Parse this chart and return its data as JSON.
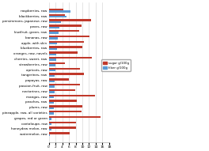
{
  "categories": [
    "raspberries, raw",
    "blackberries, raw",
    "persimmons, japanese, raw",
    "pears, raw",
    "kiwifruit, green, raw",
    "bananas, raw",
    "apple, with skin",
    "blueberries, raw",
    "oranges, raw, navels",
    "cherries, sweet, raw",
    "strawberries, raw",
    "apricots, raw",
    "tangerines, raw",
    "papayas, raw",
    "passion-fruit, raw",
    "nectarines, raw",
    "mangos, raw",
    "peaches, raw",
    "plums, raw",
    "pineapple, raw, all varieties",
    "grapes, red or green",
    "cantaloupe, raw",
    "honeydew melon, raw",
    "watermelon, raw"
  ],
  "sugar_per_100g": [
    4.42,
    4.88,
    12.53,
    9.75,
    8.99,
    12.23,
    10.39,
    9.96,
    8.5,
    12.82,
    4.89,
    9.24,
    10.58,
    5.9,
    9.24,
    7.89,
    13.66,
    8.39,
    9.92,
    9.85,
    15.48,
    8.12,
    8.12,
    6.2
  ],
  "fiber_per_100g": [
    6.5,
    5.3,
    3.6,
    3.1,
    3.0,
    2.6,
    2.4,
    2.4,
    2.2,
    2.1,
    2.0,
    2.0,
    1.8,
    1.7,
    1.8,
    1.7,
    1.6,
    1.5,
    1.4,
    1.4,
    0.9,
    0.9,
    0.8,
    0.4
  ],
  "bar_color_sugar": "#c0392b",
  "bar_color_fiber": "#5b9bd5",
  "legend_sugar": "sugar g/100g",
  "legend_fiber": "fiber g/100g",
  "xlim": [
    0,
    18
  ],
  "xticks": [
    0,
    2,
    4,
    6,
    8,
    10,
    12,
    14,
    16,
    18
  ],
  "background_color": "#ffffff",
  "grid_color": "#d0d0d0",
  "bar_height": 0.35
}
